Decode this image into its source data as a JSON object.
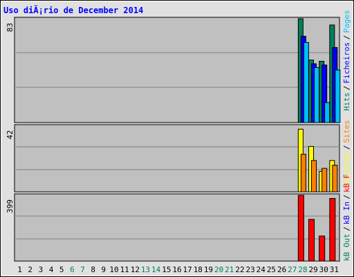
{
  "chart_data": {
    "type": "bar",
    "title": "Uso diÃ¡rio de December 2014",
    "days": [
      {
        "label": "1",
        "weekend": false
      },
      {
        "label": "2",
        "weekend": false
      },
      {
        "label": "3",
        "weekend": false
      },
      {
        "label": "4",
        "weekend": false
      },
      {
        "label": "5",
        "weekend": false
      },
      {
        "label": "6",
        "weekend": true
      },
      {
        "label": "7",
        "weekend": true
      },
      {
        "label": "8",
        "weekend": false
      },
      {
        "label": "9",
        "weekend": false
      },
      {
        "label": "10",
        "weekend": false
      },
      {
        "label": "11",
        "weekend": false
      },
      {
        "label": "12",
        "weekend": false
      },
      {
        "label": "13",
        "weekend": true
      },
      {
        "label": "14",
        "weekend": true
      },
      {
        "label": "15",
        "weekend": false
      },
      {
        "label": "16",
        "weekend": false
      },
      {
        "label": "17",
        "weekend": false
      },
      {
        "label": "18",
        "weekend": false
      },
      {
        "label": "19",
        "weekend": false
      },
      {
        "label": "20",
        "weekend": true
      },
      {
        "label": "21",
        "weekend": true
      },
      {
        "label": "22",
        "weekend": false
      },
      {
        "label": "23",
        "weekend": false
      },
      {
        "label": "24",
        "weekend": false
      },
      {
        "label": "25",
        "weekend": false
      },
      {
        "label": "26",
        "weekend": false
      },
      {
        "label": "27",
        "weekend": true
      },
      {
        "label": "28",
        "weekend": true
      },
      {
        "label": "29",
        "weekend": false
      },
      {
        "label": "30",
        "weekend": false
      },
      {
        "label": "31",
        "weekend": false
      }
    ],
    "panels": [
      {
        "ymax_label": "83",
        "ymax": 83,
        "series": [
          {
            "name": "Hits",
            "color": "#00805c",
            "values": [
              0,
              0,
              0,
              0,
              0,
              0,
              0,
              0,
              0,
              0,
              0,
              0,
              0,
              0,
              0,
              0,
              0,
              0,
              0,
              0,
              0,
              0,
              0,
              0,
              0,
              0,
              0,
              83,
              50,
              49,
              78
            ]
          },
          {
            "name": "Ficheiros",
            "color": "#0000ff",
            "values": [
              0,
              0,
              0,
              0,
              0,
              0,
              0,
              0,
              0,
              0,
              0,
              0,
              0,
              0,
              0,
              0,
              0,
              0,
              0,
              0,
              0,
              0,
              0,
              0,
              0,
              0,
              0,
              69,
              47,
              46,
              60
            ]
          },
          {
            "name": "Pages",
            "color": "#00bfff",
            "values": [
              0,
              0,
              0,
              0,
              0,
              0,
              0,
              0,
              0,
              0,
              0,
              0,
              0,
              0,
              0,
              0,
              0,
              0,
              0,
              0,
              0,
              0,
              0,
              0,
              0,
              0,
              0,
              64,
              44,
              16,
              42
            ]
          }
        ]
      },
      {
        "ymax_label": "42",
        "ymax": 42,
        "series": [
          {
            "name": "Visits",
            "color": "#ffff00",
            "values": [
              0,
              0,
              0,
              0,
              0,
              0,
              0,
              0,
              0,
              0,
              0,
              0,
              0,
              0,
              0,
              0,
              0,
              0,
              0,
              0,
              0,
              0,
              0,
              0,
              0,
              0,
              0,
              40,
              29,
              13,
              20
            ]
          },
          {
            "name": "Sites",
            "color": "#ff8000",
            "values": [
              0,
              0,
              0,
              0,
              0,
              0,
              0,
              0,
              0,
              0,
              0,
              0,
              0,
              0,
              0,
              0,
              0,
              0,
              0,
              0,
              0,
              0,
              0,
              0,
              0,
              0,
              0,
              24,
              20,
              15,
              17
            ]
          }
        ]
      },
      {
        "ymax_label": "399",
        "ymax": 399,
        "series": [
          {
            "name": "kB F",
            "color": "#ff0000",
            "values": [
              0,
              0,
              0,
              0,
              0,
              0,
              0,
              0,
              0,
              0,
              0,
              0,
              0,
              0,
              0,
              0,
              0,
              0,
              0,
              0,
              0,
              0,
              0,
              0,
              0,
              0,
              0,
              399,
              253,
              152,
              380
            ]
          }
        ]
      }
    ],
    "legend": {
      "top": [
        {
          "text": "Hits",
          "color": "#00805c"
        },
        {
          "text": "/",
          "color": "#000000"
        },
        {
          "text": "Ficheiros",
          "color": "#0000ff"
        },
        {
          "text": "/",
          "color": "#000000"
        },
        {
          "text": "Pages",
          "color": "#00bfff"
        }
      ],
      "middle": [
        {
          "text": "Visitas",
          "color": "#ffff00"
        },
        {
          "text": "/",
          "color": "#000000"
        },
        {
          "text": "Sites",
          "color": "#ff8000"
        }
      ],
      "bottom": [
        {
          "text": "kB Out",
          "color": "#00805c"
        },
        {
          "text": "/",
          "color": "#000000"
        },
        {
          "text": "kB In",
          "color": "#0000ff"
        },
        {
          "text": "/",
          "color": "#000000"
        },
        {
          "text": "kB F",
          "color": "#ff0000"
        }
      ]
    },
    "colors": {
      "plot_bg": "#c0c0c0",
      "frame_bg": "#e0e0e0",
      "title": "#0000ff",
      "weekday_label": "#000000",
      "weekend_label": "#00805c"
    },
    "grid": true
  }
}
